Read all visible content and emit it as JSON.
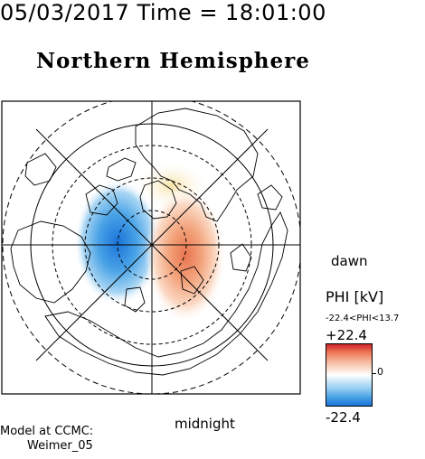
{
  "header": "05/03/2017 Time = 18:01:00",
  "title": "Northern Hemisphere",
  "labels": {
    "dawn": "dawn",
    "midnight": "midnight"
  },
  "colorbar": {
    "label": "PHI [kV]",
    "range": "-22.4<PHI<13.7",
    "max": "+22.4",
    "min": "-22.4",
    "zero": "0",
    "colors": {
      "positive": "#d1232b",
      "neutral": "#ffffff",
      "negative": "#1a73d8"
    }
  },
  "credit": {
    "line1": "Model at CCMC:",
    "line2": "Weimer_05"
  }
}
